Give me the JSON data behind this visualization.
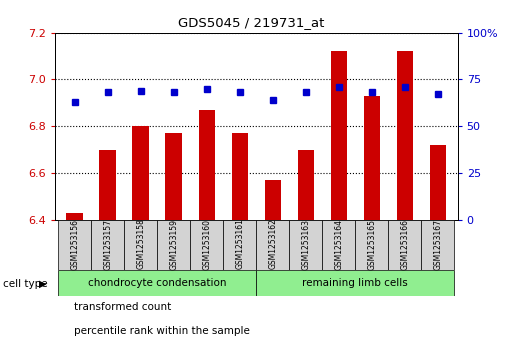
{
  "title": "GDS5045 / 219731_at",
  "samples": [
    "GSM1253156",
    "GSM1253157",
    "GSM1253158",
    "GSM1253159",
    "GSM1253160",
    "GSM1253161",
    "GSM1253162",
    "GSM1253163",
    "GSM1253164",
    "GSM1253165",
    "GSM1253166",
    "GSM1253167"
  ],
  "transformed_count": [
    6.43,
    6.7,
    6.8,
    6.77,
    6.87,
    6.77,
    6.57,
    6.7,
    7.12,
    6.93,
    7.12,
    6.72
  ],
  "percentile_rank": [
    63,
    68,
    69,
    68,
    70,
    68,
    64,
    68,
    71,
    68,
    71,
    67
  ],
  "ylim_left": [
    6.4,
    7.2
  ],
  "ylim_right": [
    0,
    100
  ],
  "yticks_left": [
    6.4,
    6.6,
    6.8,
    7.0,
    7.2
  ],
  "yticks_right": [
    0,
    25,
    50,
    75,
    100
  ],
  "ytick_labels_right": [
    "0",
    "25",
    "50",
    "75",
    "100%"
  ],
  "bar_color": "#CC0000",
  "dot_color": "#0000CC",
  "bar_width": 0.5,
  "background_color": "#d3d3d3",
  "plot_bg": "#ffffff",
  "cell_type_groups": [
    {
      "label": "chondrocyte condensation",
      "start": 0,
      "end": 5
    },
    {
      "label": "remaining limb cells",
      "start": 6,
      "end": 11
    }
  ],
  "cell_type_color": "#90EE90",
  "legend": [
    {
      "color": "#CC0000",
      "label": "transformed count"
    },
    {
      "color": "#0000CC",
      "label": "percentile rank within the sample"
    }
  ]
}
